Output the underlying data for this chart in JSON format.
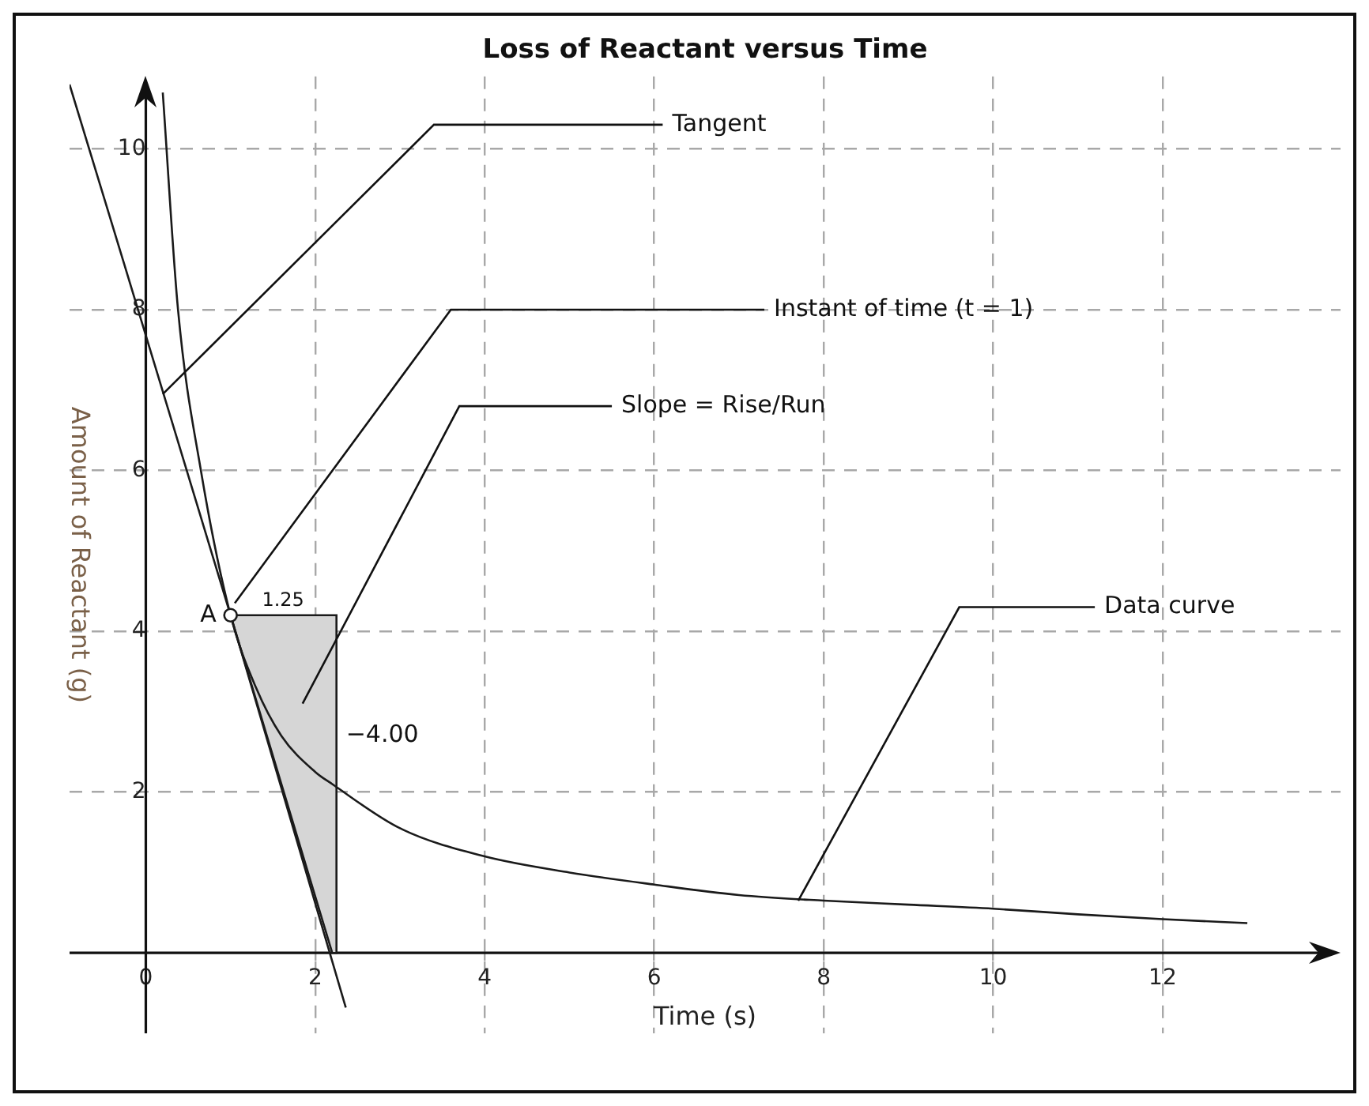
{
  "chart_data": {
    "type": "line",
    "title": "Loss of Reactant versus Time",
    "xlabel": "Time (s)",
    "ylabel": "Amount of Reactant (g)",
    "xlim": [
      -0.9,
      14.1
    ],
    "ylim": [
      -1.0,
      10.9
    ],
    "xticks": [
      0,
      2,
      4,
      6,
      8,
      10,
      12
    ],
    "yticks": [
      2,
      4,
      6,
      8,
      10
    ],
    "grid": true,
    "legend": false,
    "marker": "none",
    "line_style": "solid",
    "series": [
      {
        "x": [
          0.2,
          0.38,
          0.65,
          1,
          1.3,
          1.6,
          2,
          2.2,
          3,
          4,
          5,
          6,
          7,
          8,
          9,
          10,
          11,
          12,
          13
        ],
        "values": [
          10.7,
          8,
          6,
          4.2,
          3.3,
          2.7,
          2.25,
          2.1,
          1.55,
          1.2,
          1.0,
          0.85,
          0.72,
          0.65,
          0.6,
          0.55,
          0.48,
          0.42,
          0.37
        ],
        "color": "#1a1a1a"
      },
      {
        "x": [
          -0.9,
          1,
          2.36
        ],
        "values": [
          10.8,
          4.2,
          -0.68
        ],
        "color": "#1a1a1a"
      },
      {
        "type": "area",
        "x": [
          1,
          2.25,
          2.25,
          2.2,
          1
        ],
        "values": [
          4.2,
          4.2,
          0,
          0,
          4.2
        ],
        "color": "#d6d6d6"
      },
      {
        "type": "scatter",
        "x": [
          1
        ],
        "values": [
          4.2
        ],
        "color": "#1a1a1a",
        "marker": "circle"
      }
    ],
    "annotations": [
      {
        "text": "Tangent",
        "x": 0.2,
        "y": 6.95
      },
      {
        "text": "Instant of time (t = 1)",
        "x": 1.05,
        "y": 4.35
      },
      "Slope = Rise/Run",
      {
        "text": "Data curve",
        "x": 7.7,
        "y": 0.65
      },
      {
        "text": "A",
        "x": 1,
        "y": 4.2
      },
      {
        "text": "1.25",
        "x": 1.62,
        "y": 4.2
      },
      {
        "text": "−4.00",
        "x": 2.25,
        "y": 2.7
      }
    ]
  }
}
